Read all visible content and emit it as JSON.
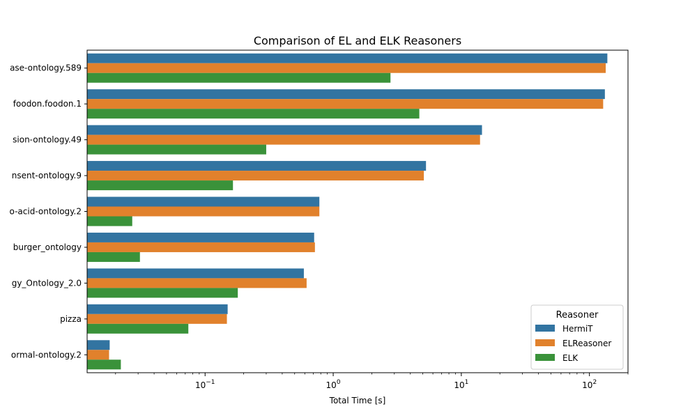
{
  "chart_data": {
    "type": "bar",
    "orientation": "horizontal",
    "title": "Comparison of EL and ELK Reasoners",
    "xlabel": "Total Time [s]",
    "ylabel": "",
    "xscale": "log",
    "xlim": [
      0.012,
      200
    ],
    "xticks": [
      {
        "value": 0.1,
        "label": "10",
        "exp": "−1"
      },
      {
        "value": 1,
        "label": "10",
        "exp": "0"
      },
      {
        "value": 10,
        "label": "10",
        "exp": "1"
      },
      {
        "value": 100,
        "label": "10",
        "exp": "2"
      }
    ],
    "categories": [
      "ase-ontology.589",
      "foodon.foodon.1",
      "sion-ontology.49",
      "nsent-ontology.9",
      "o-acid-ontology.2",
      "burger_ontology",
      "gy_Ontology_2.0",
      "pizza",
      "ormal-ontology.2"
    ],
    "series": [
      {
        "name": "HermiT",
        "color": "#3274a1",
        "values": [
          138,
          132,
          14.5,
          5.3,
          0.78,
          0.71,
          0.59,
          0.15,
          0.018
        ]
      },
      {
        "name": "ELReasoner",
        "color": "#e1812c",
        "values": [
          134,
          128,
          14.0,
          5.1,
          0.78,
          0.72,
          0.62,
          0.148,
          0.0178
        ]
      },
      {
        "name": "ELK",
        "color": "#3a923a",
        "values": [
          2.8,
          4.7,
          0.3,
          0.165,
          0.027,
          0.031,
          0.18,
          0.074,
          0.022
        ]
      }
    ],
    "legend": {
      "title": "Reasoner",
      "position": "lower-right"
    },
    "grid": false
  }
}
